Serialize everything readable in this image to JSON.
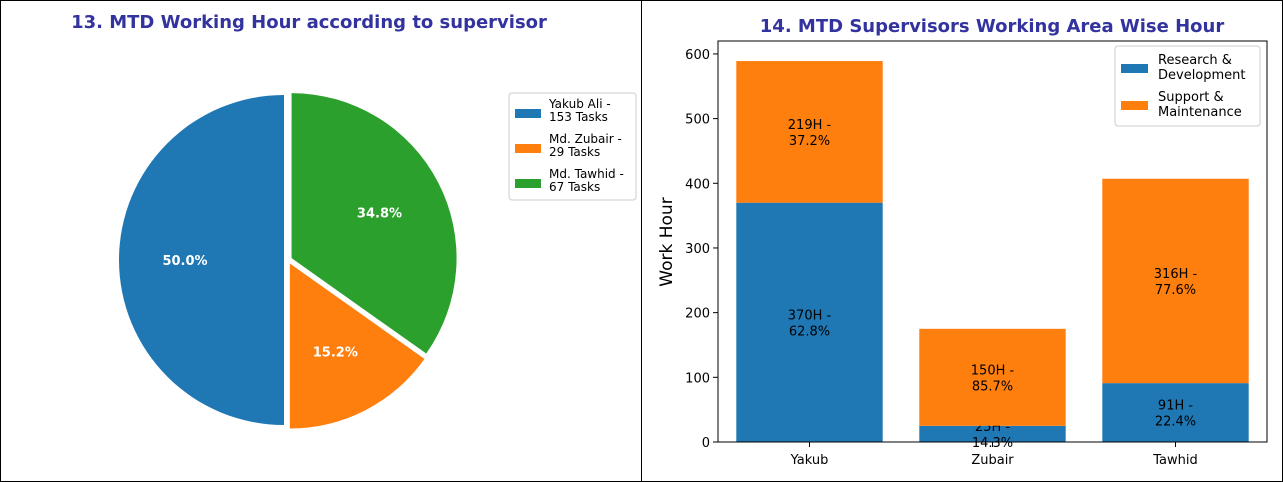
{
  "chart_data": [
    {
      "type": "pie",
      "title": "13. MTD Working Hour according to supervisor",
      "slices": [
        {
          "legend": [
            "Yakub Ali -",
            "153 Tasks"
          ],
          "value": 153,
          "pct_label": "50.0%",
          "color": "#1f77b4"
        },
        {
          "legend": [
            "Md. Zubair -",
            "29 Tasks"
          ],
          "value": 46.5,
          "pct_label": "15.2%",
          "color": "#ff7f0e"
        },
        {
          "legend": [
            "Md. Tawhid -",
            "67 Tasks"
          ],
          "value": 106.5,
          "pct_label": "34.8%",
          "color": "#2ca02c"
        }
      ],
      "legend_position": "right"
    },
    {
      "type": "bar",
      "stacked": true,
      "title": "14. MTD Supervisors Working Area Wise Hour",
      "ylabel": "Work Hour",
      "categories": [
        "Yakub",
        "Zubair",
        "Tawhid"
      ],
      "series": [
        {
          "name": [
            "Research &",
            "Development"
          ],
          "values": [
            370,
            25,
            91
          ],
          "labels": [
            [
              "370H -",
              "62.8%"
            ],
            [
              "25H -",
              "14.3%"
            ],
            [
              "91H -",
              "22.4%"
            ]
          ],
          "color": "#1f77b4"
        },
        {
          "name": [
            "Support &",
            "Maintenance"
          ],
          "values": [
            219,
            150,
            316
          ],
          "labels": [
            [
              "219H -",
              "37.2%"
            ],
            [
              "150H -",
              "85.7%"
            ],
            [
              "316H -",
              "77.6%"
            ]
          ],
          "color": "#ff7f0e"
        }
      ],
      "ylim": [
        0,
        620
      ],
      "yticks": [
        0,
        100,
        200,
        300,
        400,
        500,
        600
      ],
      "legend_position": "top-right"
    }
  ]
}
